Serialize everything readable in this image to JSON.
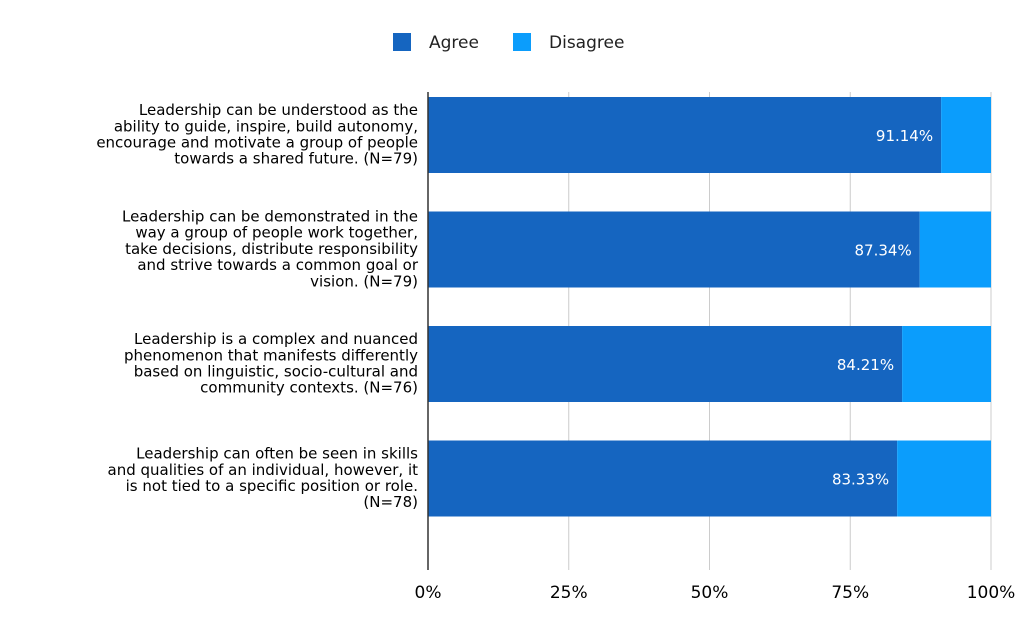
{
  "chart_data": {
    "type": "bar",
    "orientation": "horizontal",
    "stacked": true,
    "title": "",
    "xlabel": "",
    "ylabel": "",
    "xlim": [
      0,
      100
    ],
    "grid": true,
    "legend_position": "top",
    "x_ticks": [
      "0%",
      "25%",
      "50%",
      "75%",
      "100%"
    ],
    "categories": [
      "Leadership can be understood as the ability to guide, inspire, build autonomy, encourage and motivate a group of people towards a shared future. (N=79)",
      "Leadership can be demonstrated in the way a group of people work together, take decisions, distribute responsibility and strive towards a common goal or vision. (N=79)",
      "Leadership is a complex and nuanced phenomenon that manifests differently based on linguistic, socio-cultural and community contexts. (N=76)",
      "Leadership can often be seen in skills and qualities of an individual, however, it is not tied to a specific position or role. (N=78)"
    ],
    "category_lines": [
      [
        "Leadership can be understood as the",
        "ability to guide, inspire, build autonomy,",
        "encourage and motivate a group of people",
        "towards a shared future. (N=79)"
      ],
      [
        "Leadership can be demonstrated in the",
        "way a group of people work together,",
        "take decisions, distribute responsibility",
        "and strive towards a common goal or",
        "vision. (N=79)"
      ],
      [
        "Leadership is a complex and nuanced",
        "phenomenon that manifests differently",
        "based on linguistic, socio-cultural and",
        "community contexts. (N=76)"
      ],
      [
        "Leadership can often be seen in skills",
        "and qualities of an individual, however, it",
        "is not tied to a specific position or role.",
        "(N=78)"
      ]
    ],
    "series": [
      {
        "name": "Agree",
        "color": "#1565c0",
        "values": [
          91.14,
          87.34,
          84.21,
          83.33
        ],
        "labels": [
          "91.14%",
          "87.34%",
          "84.21%",
          "83.33%"
        ]
      },
      {
        "name": "Disagree",
        "color": "#0b9dfc",
        "values": [
          8.86,
          12.66,
          15.79,
          16.67
        ]
      }
    ]
  }
}
